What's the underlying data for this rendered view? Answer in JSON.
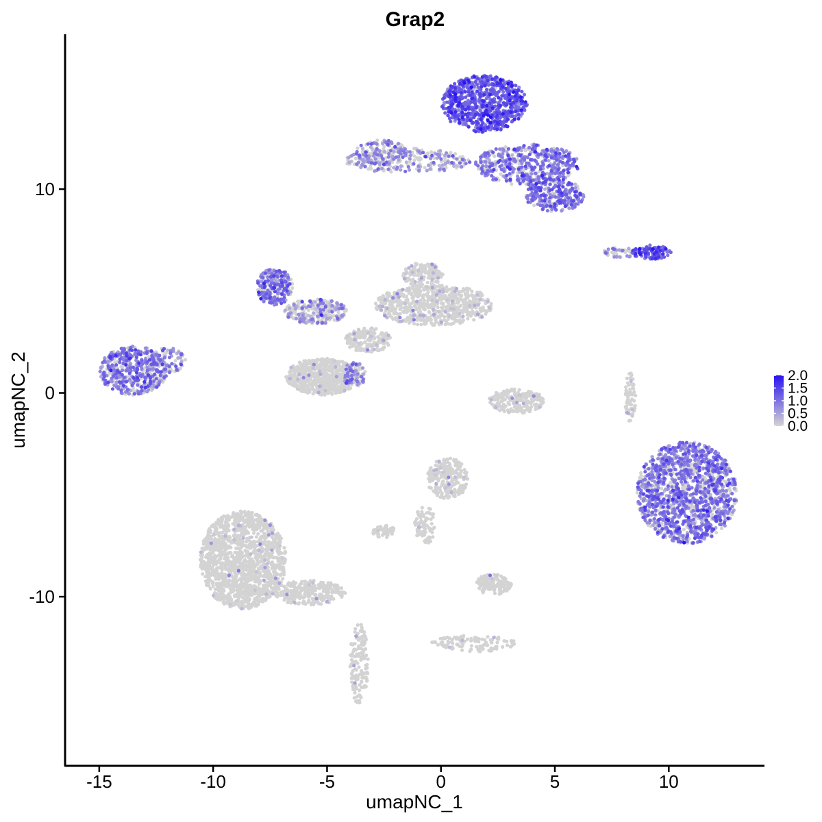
{
  "chart_data": {
    "type": "scatter",
    "title": "Grap2",
    "xlabel": "umapNC_1",
    "ylabel": "umapNC_2",
    "xlim": [
      -16.5,
      14.2
    ],
    "ylim": [
      -18.3,
      17.6
    ],
    "xticks": [
      -15,
      -10,
      -5,
      0,
      5,
      10
    ],
    "yticks": [
      -10,
      0,
      10
    ],
    "xtick_labels": [
      "-15",
      "-10",
      "-5",
      "0",
      "5",
      "10"
    ],
    "ytick_labels": [
      "-10",
      "0",
      "10"
    ],
    "grid": false,
    "color_scale": {
      "low": "#d3d3d3",
      "high": "#2a13f0",
      "min": 0.0,
      "max": 2.0,
      "ticks": [
        0.0,
        0.5,
        1.0,
        1.5,
        2.0
      ],
      "tick_labels": [
        "0.0",
        "0.5",
        "1.0",
        "1.5",
        "2.0"
      ],
      "legend_position": "right"
    },
    "clusters": [
      {
        "label": "cluster top-right (high)",
        "cx": 1.9,
        "cy": 14.2,
        "rx": 1.9,
        "ry": 1.4,
        "n": 800,
        "expr": 1.2
      },
      {
        "label": "cluster top-right arm",
        "cx": 3.8,
        "cy": 11.2,
        "rx": 2.3,
        "ry": 1.0,
        "n": 500,
        "expr": 0.9
      },
      {
        "label": "cluster top-right tail",
        "cx": 5.0,
        "cy": 9.7,
        "rx": 1.3,
        "ry": 0.8,
        "n": 250,
        "expr": 1.0
      },
      {
        "label": "cluster top bridge",
        "cx": -1.5,
        "cy": 11.4,
        "rx": 2.8,
        "ry": 0.6,
        "n": 260,
        "expr": 0.6
      },
      {
        "label": "cluster top-left bar",
        "cx": -2.6,
        "cy": 11.8,
        "rx": 1.2,
        "ry": 0.6,
        "n": 140,
        "expr": 0.7
      },
      {
        "label": "cluster small right",
        "cx": 9.2,
        "cy": 6.9,
        "rx": 0.9,
        "ry": 0.35,
        "n": 110,
        "expr": 1.2
      },
      {
        "label": "cluster small right tail",
        "cx": 7.9,
        "cy": 6.9,
        "rx": 0.8,
        "ry": 0.25,
        "n": 50,
        "expr": 0.6
      },
      {
        "label": "cluster left",
        "cx": -13.5,
        "cy": 1.1,
        "rx": 1.5,
        "ry": 1.2,
        "n": 520,
        "expr": 0.85
      },
      {
        "label": "cluster left tip",
        "cx": -12.0,
        "cy": 1.6,
        "rx": 0.8,
        "ry": 0.6,
        "n": 90,
        "expr": 0.7
      },
      {
        "label": "cluster mid-left arm",
        "cx": -7.3,
        "cy": 5.2,
        "rx": 0.8,
        "ry": 0.9,
        "n": 260,
        "expr": 0.85
      },
      {
        "label": "cluster mid-left bridge",
        "cx": -5.5,
        "cy": 4.0,
        "rx": 1.4,
        "ry": 0.6,
        "n": 260,
        "expr": 0.6
      },
      {
        "label": "cluster mid center",
        "cx": -0.3,
        "cy": 4.3,
        "rx": 2.6,
        "ry": 1.0,
        "n": 700,
        "expr": 0.12
      },
      {
        "label": "cluster mid center top",
        "cx": -0.8,
        "cy": 5.8,
        "rx": 0.9,
        "ry": 0.6,
        "n": 150,
        "expr": 0.15
      },
      {
        "label": "cluster mid stem",
        "cx": -3.2,
        "cy": 2.6,
        "rx": 1.0,
        "ry": 0.6,
        "n": 180,
        "expr": 0.1
      },
      {
        "label": "cluster mid blob",
        "cx": -5.2,
        "cy": 0.8,
        "rx": 1.6,
        "ry": 0.9,
        "n": 650,
        "expr": 0.02
      },
      {
        "label": "cluster mid blob purple",
        "cx": -3.8,
        "cy": 0.9,
        "rx": 0.5,
        "ry": 0.6,
        "n": 90,
        "expr": 0.7
      },
      {
        "label": "cluster small center",
        "cx": 3.3,
        "cy": -0.4,
        "rx": 1.2,
        "ry": 0.6,
        "n": 220,
        "expr": 0.05
      },
      {
        "label": "cluster big right",
        "cx": 10.8,
        "cy": -4.9,
        "rx": 2.2,
        "ry": 2.5,
        "n": 1500,
        "expr": 0.9
      },
      {
        "label": "cluster center lower",
        "cx": 0.3,
        "cy": -4.2,
        "rx": 0.9,
        "ry": 1.0,
        "n": 240,
        "expr": 0.1
      },
      {
        "label": "cluster center lower arm",
        "cx": -0.7,
        "cy": -6.5,
        "rx": 0.5,
        "ry": 0.9,
        "n": 80,
        "expr": 0.05
      },
      {
        "label": "cluster small lower",
        "cx": -2.5,
        "cy": -6.8,
        "rx": 0.5,
        "ry": 0.3,
        "n": 60,
        "expr": 0.1
      },
      {
        "label": "cluster big bottom-left",
        "cx": -8.7,
        "cy": -8.2,
        "rx": 1.9,
        "ry": 2.4,
        "n": 1500,
        "expr": 0.0
      },
      {
        "label": "cluster bottom-left arm",
        "cx": -5.8,
        "cy": -9.8,
        "rx": 1.6,
        "ry": 0.6,
        "n": 300,
        "expr": 0.0
      },
      {
        "label": "cluster bottom stalk",
        "cx": -3.6,
        "cy": -13.3,
        "rx": 0.4,
        "ry": 2.0,
        "n": 160,
        "expr": 0.05
      },
      {
        "label": "cluster lower right small",
        "cx": 2.3,
        "cy": -9.4,
        "rx": 0.8,
        "ry": 0.5,
        "n": 140,
        "expr": 0.05
      },
      {
        "label": "cluster lower branch",
        "cx": 1.4,
        "cy": -12.3,
        "rx": 1.9,
        "ry": 0.4,
        "n": 110,
        "expr": 0.03
      },
      {
        "label": "cluster thin arc",
        "cx": 8.3,
        "cy": -0.2,
        "rx": 0.25,
        "ry": 1.2,
        "n": 70,
        "expr": 0.1
      }
    ]
  }
}
